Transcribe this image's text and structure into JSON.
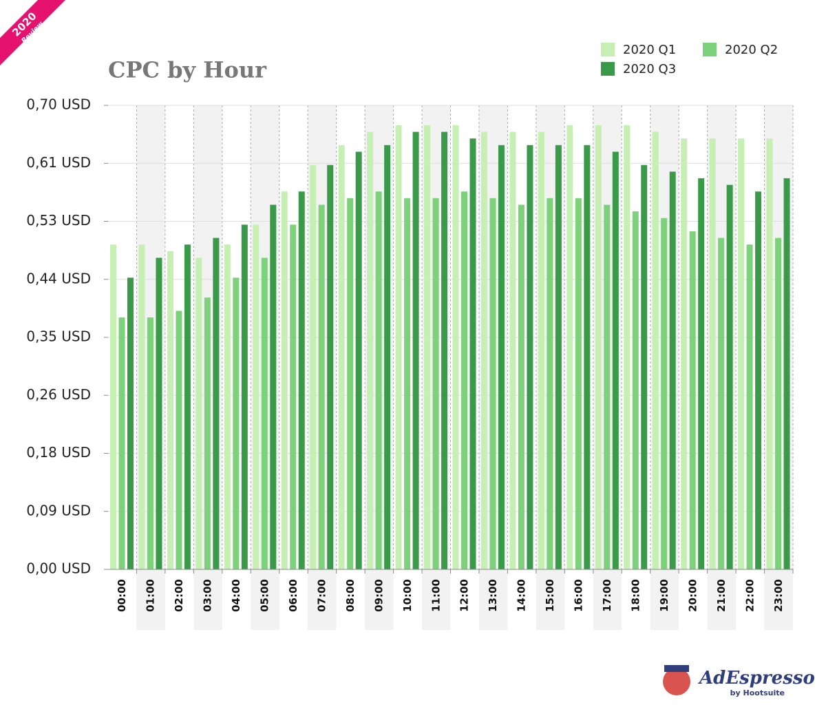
{
  "chart_data": {
    "type": "bar",
    "title": "CPC by Hour",
    "categories": [
      "00:00",
      "01:00",
      "02:00",
      "03:00",
      "04:00",
      "05:00",
      "06:00",
      "07:00",
      "08:00",
      "09:00",
      "10:00",
      "11:00",
      "12:00",
      "13:00",
      "14:00",
      "15:00",
      "16:00",
      "17:00",
      "18:00",
      "19:00",
      "20:00",
      "21:00",
      "22:00",
      "23:00"
    ],
    "series": [
      {
        "name": "2020 Q1",
        "color": "#c6efb3",
        "values": [
          0.49,
          0.49,
          0.48,
          0.47,
          0.49,
          0.52,
          0.57,
          0.61,
          0.64,
          0.66,
          0.67,
          0.67,
          0.67,
          0.66,
          0.66,
          0.66,
          0.67,
          0.67,
          0.67,
          0.66,
          0.65,
          0.65,
          0.65,
          0.65
        ]
      },
      {
        "name": "2020 Q2",
        "color": "#7dd17a",
        "values": [
          0.38,
          0.38,
          0.39,
          0.41,
          0.44,
          0.47,
          0.52,
          0.55,
          0.56,
          0.57,
          0.56,
          0.56,
          0.57,
          0.56,
          0.55,
          0.56,
          0.56,
          0.55,
          0.54,
          0.53,
          0.51,
          0.5,
          0.49,
          0.5
        ]
      },
      {
        "name": "2020 Q3",
        "color": "#3a9a4a",
        "values": [
          0.44,
          0.47,
          0.49,
          0.5,
          0.52,
          0.55,
          0.57,
          0.61,
          0.63,
          0.64,
          0.66,
          0.66,
          0.65,
          0.64,
          0.64,
          0.64,
          0.64,
          0.63,
          0.61,
          0.6,
          0.59,
          0.58,
          0.57,
          0.59
        ]
      }
    ],
    "ylim": [
      0,
      0.7
    ],
    "yticks": [
      {
        "value": 0,
        "label": "0,00 USD"
      },
      {
        "value": 0.0875,
        "label": "0,09 USD"
      },
      {
        "value": 0.175,
        "label": "0,18 USD"
      },
      {
        "value": 0.2625,
        "label": "0,26 USD"
      },
      {
        "value": 0.35,
        "label": "0,35 USD"
      },
      {
        "value": 0.4375,
        "label": "0,44 USD"
      },
      {
        "value": 0.525,
        "label": "0,53 USD"
      },
      {
        "value": 0.6125,
        "label": "0,61 USD"
      },
      {
        "value": 0.7,
        "label": "0,70 USD"
      }
    ],
    "grid": true,
    "legend": "top-right"
  },
  "badge": {
    "year": "2020",
    "text": "Review"
  },
  "logo": {
    "name": "AdEspresso",
    "by": "by Hootsuite"
  }
}
